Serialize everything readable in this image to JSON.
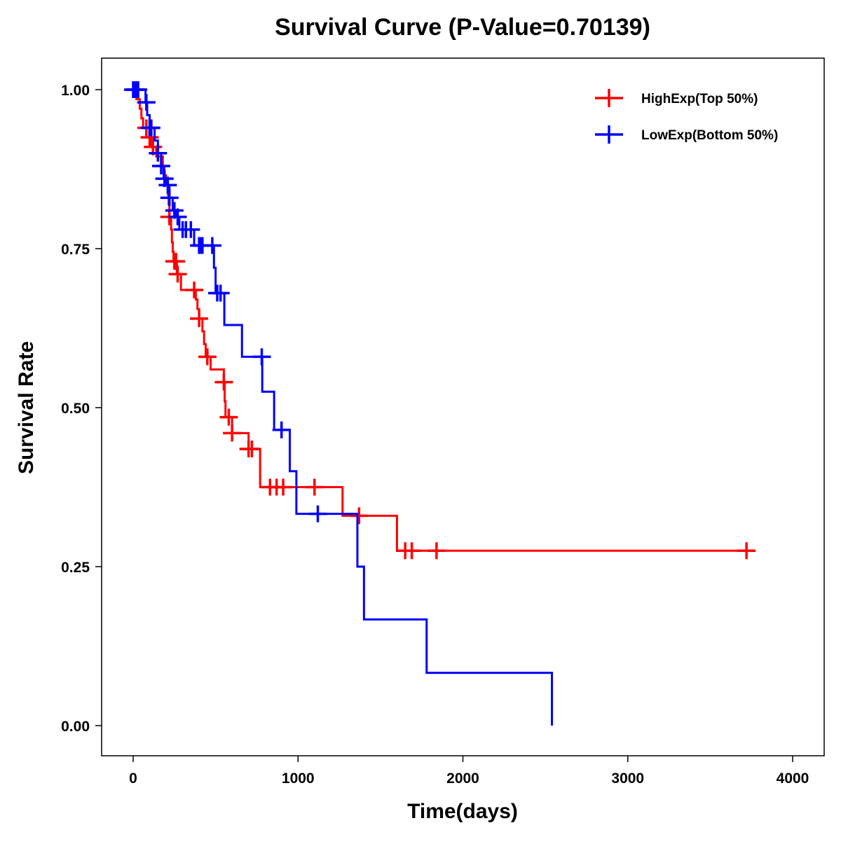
{
  "chart_data": {
    "type": "line",
    "subtype": "kaplan-meier step",
    "title": "Survival Curve (P-Value=0.70139)",
    "xlabel": "Time(days)",
    "ylabel": "Survival Rate",
    "xlim": [
      -200,
      4150
    ],
    "ylim": [
      -0.05,
      1.05
    ],
    "xticks": [
      0,
      1000,
      2000,
      3000,
      4000
    ],
    "xtick_labels": [
      "0",
      "1000",
      "2000",
      "3000",
      "4000"
    ],
    "yticks": [
      0,
      0.25,
      0.5,
      0.75,
      1.0
    ],
    "ytick_labels": [
      "0.00",
      "0.25",
      "0.50",
      "0.75",
      "1.00"
    ],
    "grid": false,
    "legend_position": "top-right",
    "series": [
      {
        "name": "HighExp(Top 50%)",
        "color": "#ff0000",
        "steps": [
          [
            0,
            1
          ],
          [
            20,
            0.985
          ],
          [
            40,
            0.97
          ],
          [
            50,
            0.955
          ],
          [
            60,
            0.94
          ],
          [
            100,
            0.925
          ],
          [
            110,
            0.91
          ],
          [
            140,
            0.895
          ],
          [
            180,
            0.88
          ],
          [
            190,
            0.865
          ],
          [
            200,
            0.85
          ],
          [
            210,
            0.835
          ],
          [
            215,
            0.82
          ],
          [
            220,
            0.8
          ],
          [
            230,
            0.78
          ],
          [
            235,
            0.76
          ],
          [
            240,
            0.745
          ],
          [
            245,
            0.73
          ],
          [
            265,
            0.71
          ],
          [
            290,
            0.685
          ],
          [
            380,
            0.67
          ],
          [
            390,
            0.655
          ],
          [
            400,
            0.64
          ],
          [
            420,
            0.62
          ],
          [
            430,
            0.6
          ],
          [
            440,
            0.58
          ],
          [
            470,
            0.56
          ],
          [
            550,
            0.54
          ],
          [
            555,
            0.51
          ],
          [
            560,
            0.485
          ],
          [
            600,
            0.46
          ],
          [
            700,
            0.435
          ],
          [
            770,
            0.375
          ],
          [
            1270,
            0.33
          ],
          [
            1600,
            0.275
          ]
        ],
        "end": 3720,
        "censored": [
          15,
          80,
          100,
          120,
          220,
          250,
          260,
          270,
          370,
          400,
          450,
          550,
          580,
          600,
          700,
          720,
          830,
          870,
          910,
          1100,
          1370,
          1650,
          1690,
          1840,
          3720
        ]
      },
      {
        "name": "LowExp(Bottom 50%)",
        "color": "#0000ff",
        "steps": [
          [
            0,
            1
          ],
          [
            75,
            0.98
          ],
          [
            85,
            0.96
          ],
          [
            100,
            0.94
          ],
          [
            130,
            0.92
          ],
          [
            150,
            0.9
          ],
          [
            170,
            0.88
          ],
          [
            185,
            0.86
          ],
          [
            200,
            0.85
          ],
          [
            220,
            0.83
          ],
          [
            240,
            0.81
          ],
          [
            260,
            0.8
          ],
          [
            280,
            0.78
          ],
          [
            370,
            0.755
          ],
          [
            490,
            0.72
          ],
          [
            500,
            0.68
          ],
          [
            553,
            0.63
          ],
          [
            660,
            0.58
          ],
          [
            783,
            0.525
          ],
          [
            855,
            0.465
          ],
          [
            950,
            0.4
          ],
          [
            990,
            0.333
          ],
          [
            1360,
            0.25
          ],
          [
            1400,
            0.167
          ],
          [
            1780,
            0.083
          ],
          [
            2540,
            0.0
          ]
        ],
        "end": 2540,
        "censored": [
          0,
          10,
          20,
          30,
          80,
          100,
          110,
          150,
          170,
          190,
          210,
          220,
          250,
          270,
          300,
          320,
          350,
          400,
          410,
          420,
          480,
          510,
          530,
          780,
          900,
          1120
        ]
      }
    ]
  }
}
